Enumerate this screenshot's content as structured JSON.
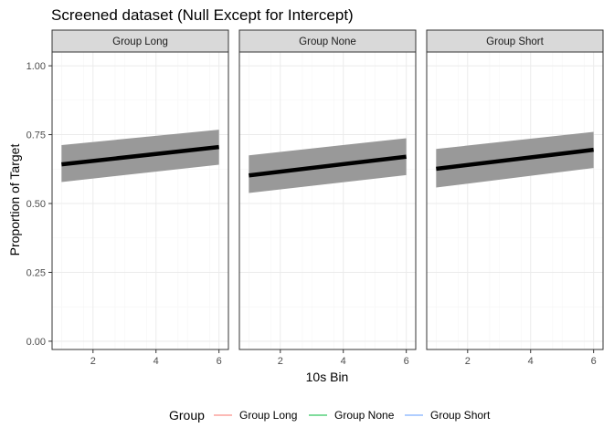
{
  "chart_data": {
    "type": "line",
    "title": "Screened dataset (Null Except for Intercept)",
    "xlabel": "10s Bin",
    "ylabel": "Proportion of Target",
    "xlim": [
      0.7,
      6.3
    ],
    "ylim": [
      -0.03,
      1.05
    ],
    "x_ticks": [
      2,
      4,
      6
    ],
    "y_ticks": [
      0.0,
      0.25,
      0.5,
      0.75,
      1.0
    ],
    "y_tick_labels": [
      "0.00",
      "0.25",
      "0.50",
      "0.75",
      "1.00"
    ],
    "grid": true,
    "legend": {
      "title": "Group",
      "position": "bottom",
      "entries": [
        {
          "label": "Group Long",
          "color": "#F8766D"
        },
        {
          "label": "Group None",
          "color": "#00BA38"
        },
        {
          "label": "Group Short",
          "color": "#619CFF"
        }
      ]
    },
    "panels": [
      {
        "strip": "Group Long",
        "x": [
          1,
          6
        ],
        "fit": [
          0.642,
          0.705
        ],
        "ci_lower": [
          0.578,
          0.641
        ],
        "ci_upper": [
          0.712,
          0.768
        ]
      },
      {
        "strip": "Group None",
        "x": [
          1,
          6
        ],
        "fit": [
          0.602,
          0.67
        ],
        "ci_lower": [
          0.538,
          0.603
        ],
        "ci_upper": [
          0.675,
          0.737
        ]
      },
      {
        "strip": "Group Short",
        "x": [
          1,
          6
        ],
        "fit": [
          0.626,
          0.695
        ],
        "ci_lower": [
          0.558,
          0.629
        ],
        "ci_upper": [
          0.698,
          0.76
        ]
      }
    ]
  },
  "colors": {
    "ribbon": "#999999",
    "line": "#000000",
    "strip_bg": "#d9d9d9",
    "grid_major": "#ebebeb",
    "grid_minor": "#f5f5f5",
    "panel_border": "#333333"
  }
}
